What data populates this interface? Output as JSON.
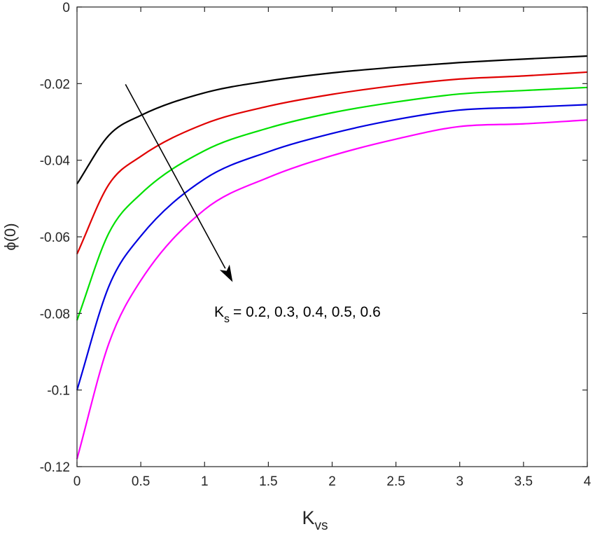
{
  "chart_data": {
    "type": "line",
    "xlabel": "K",
    "xlabel_sub": "vs",
    "ylabel": "ϕ(0)",
    "xlim": [
      0,
      4
    ],
    "ylim": [
      -0.12,
      0
    ],
    "x_ticks": [
      0,
      0.5,
      1,
      1.5,
      2,
      2.5,
      3,
      3.5,
      4
    ],
    "x_tick_labels": [
      "0",
      "0.5",
      "1",
      "1.5",
      "2",
      "2.5",
      "3",
      "3.5",
      "4"
    ],
    "y_ticks": [
      0,
      -0.02,
      -0.04,
      -0.06,
      -0.08,
      -0.1,
      -0.12
    ],
    "y_tick_labels": [
      "0",
      "-0.02",
      "-0.04",
      "-0.06",
      "-0.08",
      "-0.1",
      "-0.12"
    ],
    "grid": false,
    "x": [
      0,
      0.25,
      0.5,
      1,
      1.5,
      2,
      2.5,
      3,
      3.5,
      4
    ],
    "series": [
      {
        "color": "#000000",
        "values": [
          -0.0462,
          -0.0335,
          -0.0283,
          -0.0224,
          -0.0193,
          -0.0172,
          -0.0157,
          -0.0145,
          -0.0136,
          -0.0128
        ]
      },
      {
        "color": "#e00000",
        "values": [
          -0.0645,
          -0.0463,
          -0.039,
          -0.0305,
          -0.0259,
          -0.0228,
          -0.0205,
          -0.0188,
          -0.018,
          -0.017
        ]
      },
      {
        "color": "#00e000",
        "values": [
          -0.0818,
          -0.059,
          -0.0488,
          -0.0375,
          -0.0316,
          -0.0276,
          -0.0248,
          -0.0227,
          -0.0218,
          -0.021
        ]
      },
      {
        "color": "#0000e0",
        "values": [
          -0.1,
          -0.0729,
          -0.0598,
          -0.0449,
          -0.0378,
          -0.033,
          -0.0294,
          -0.0269,
          -0.0262,
          -0.0255
        ]
      },
      {
        "color": "#ff00ff",
        "values": [
          -0.118,
          -0.0878,
          -0.0714,
          -0.0529,
          -0.0445,
          -0.0388,
          -0.0345,
          -0.0312,
          -0.0305,
          -0.0295
        ]
      }
    ],
    "annotation": {
      "label": "K",
      "label_sub": "s",
      "values_text": "= 0.2, 0.3, 0.4, 0.5, 0.6",
      "arrow_from": [
        0.38,
        -0.0202
      ],
      "arrow_to": [
        1.22,
        -0.0718
      ]
    }
  }
}
